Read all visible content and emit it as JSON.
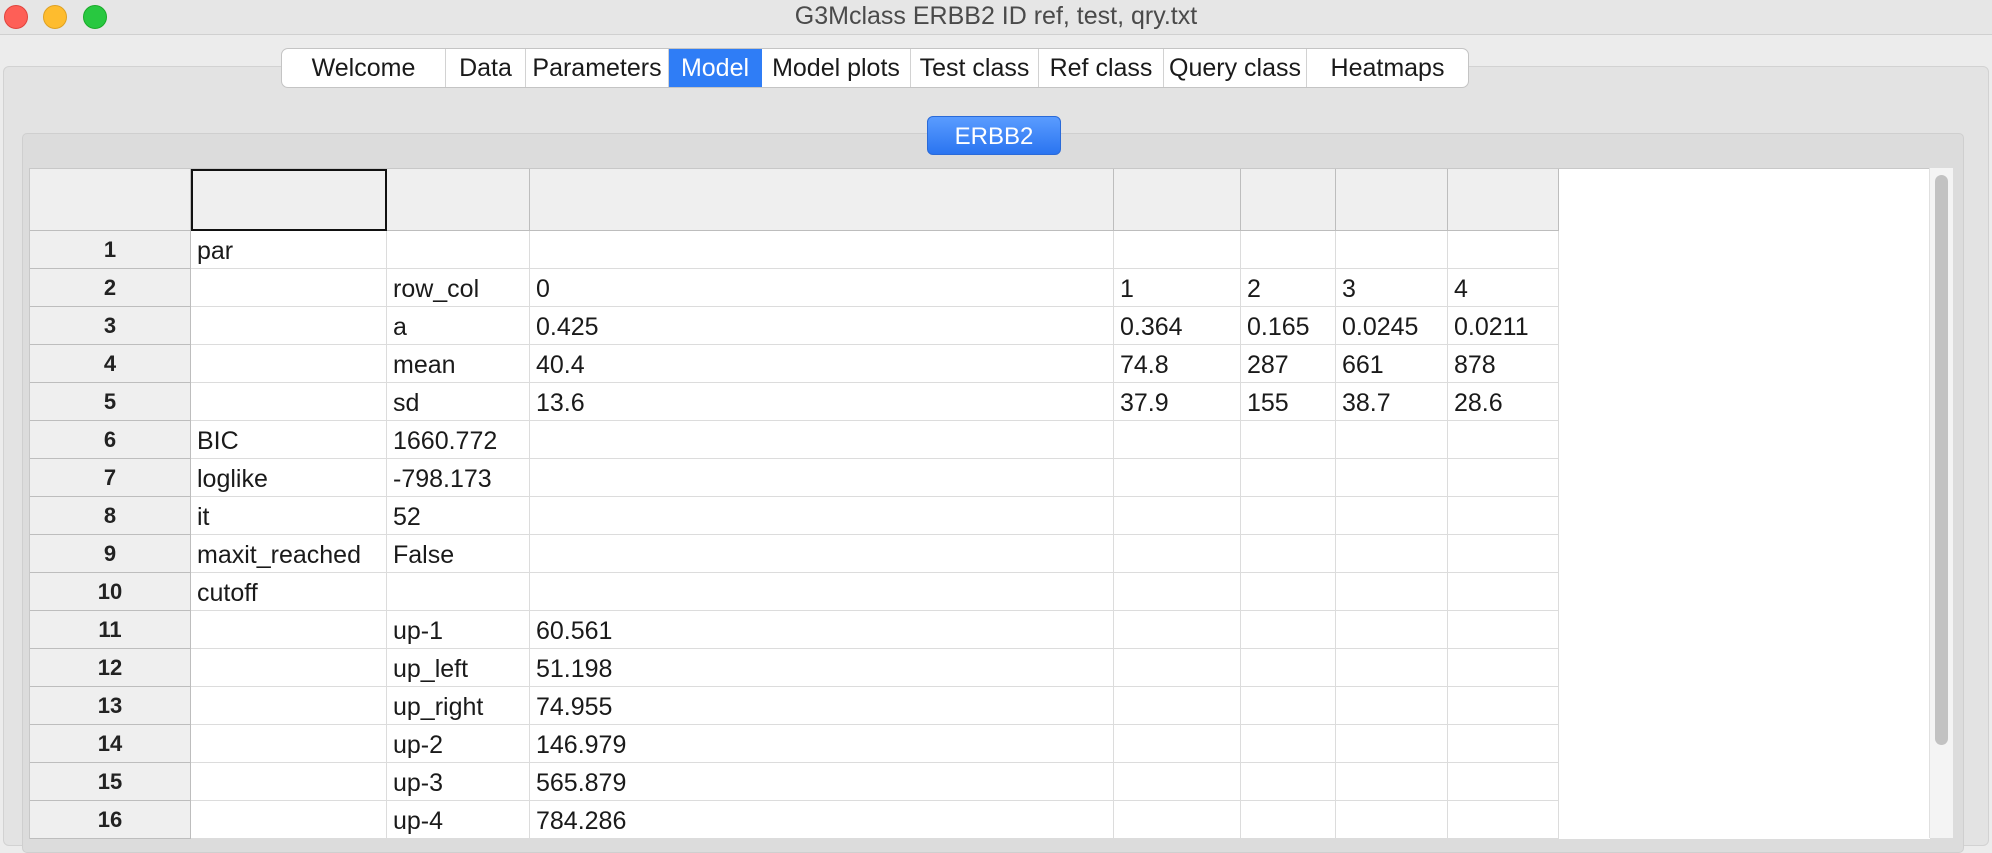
{
  "window": {
    "title": "G3Mclass ERBB2 ID ref, test, qry.txt"
  },
  "tabs": [
    {
      "label": "Welcome",
      "active": false
    },
    {
      "label": "Data",
      "active": false
    },
    {
      "label": "Parameters",
      "active": false
    },
    {
      "label": "Model",
      "active": true
    },
    {
      "label": "Model plots",
      "active": false
    },
    {
      "label": "Test class",
      "active": false
    },
    {
      "label": "Ref class",
      "active": false
    },
    {
      "label": "Query class",
      "active": false
    },
    {
      "label": "Heatmaps",
      "active": false
    }
  ],
  "subtab": {
    "label": "ERBB2"
  },
  "table": {
    "rows": [
      {
        "num": "1",
        "c": [
          "par",
          "",
          "",
          "",
          "",
          "",
          ""
        ]
      },
      {
        "num": "2",
        "c": [
          "",
          "row_col",
          "0",
          "1",
          "2",
          "3",
          "4"
        ]
      },
      {
        "num": "3",
        "c": [
          "",
          "a",
          "0.425",
          "0.364",
          "0.165",
          "0.0245",
          "0.0211"
        ]
      },
      {
        "num": "4",
        "c": [
          "",
          "mean",
          "40.4",
          "74.8",
          "287",
          "661",
          "878"
        ]
      },
      {
        "num": "5",
        "c": [
          "",
          "sd",
          "13.6",
          "37.9",
          "155",
          "38.7",
          "28.6"
        ]
      },
      {
        "num": "6",
        "c": [
          "BIC",
          "1660.772",
          "",
          "",
          "",
          "",
          ""
        ]
      },
      {
        "num": "7",
        "c": [
          "loglike",
          "-798.173",
          "",
          "",
          "",
          "",
          ""
        ]
      },
      {
        "num": "8",
        "c": [
          "it",
          "52",
          "",
          "",
          "",
          "",
          ""
        ]
      },
      {
        "num": "9",
        "c": [
          "maxit_reached",
          "False",
          "",
          "",
          "",
          "",
          ""
        ]
      },
      {
        "num": "10",
        "c": [
          "cutoff",
          "",
          "",
          "",
          "",
          "",
          ""
        ]
      },
      {
        "num": "11",
        "c": [
          "",
          "up-1",
          "60.561",
          "",
          "",
          "",
          ""
        ]
      },
      {
        "num": "12",
        "c": [
          "",
          "up_left",
          "51.198",
          "",
          "",
          "",
          ""
        ]
      },
      {
        "num": "13",
        "c": [
          "",
          "up_right",
          "74.955",
          "",
          "",
          "",
          ""
        ]
      },
      {
        "num": "14",
        "c": [
          "",
          "up-2",
          "146.979",
          "",
          "",
          "",
          ""
        ]
      },
      {
        "num": "15",
        "c": [
          "",
          "up-3",
          "565.879",
          "",
          "",
          "",
          ""
        ]
      },
      {
        "num": "16",
        "c": [
          "",
          "up-4",
          "784.286",
          "",
          "",
          "",
          ""
        ]
      }
    ]
  }
}
